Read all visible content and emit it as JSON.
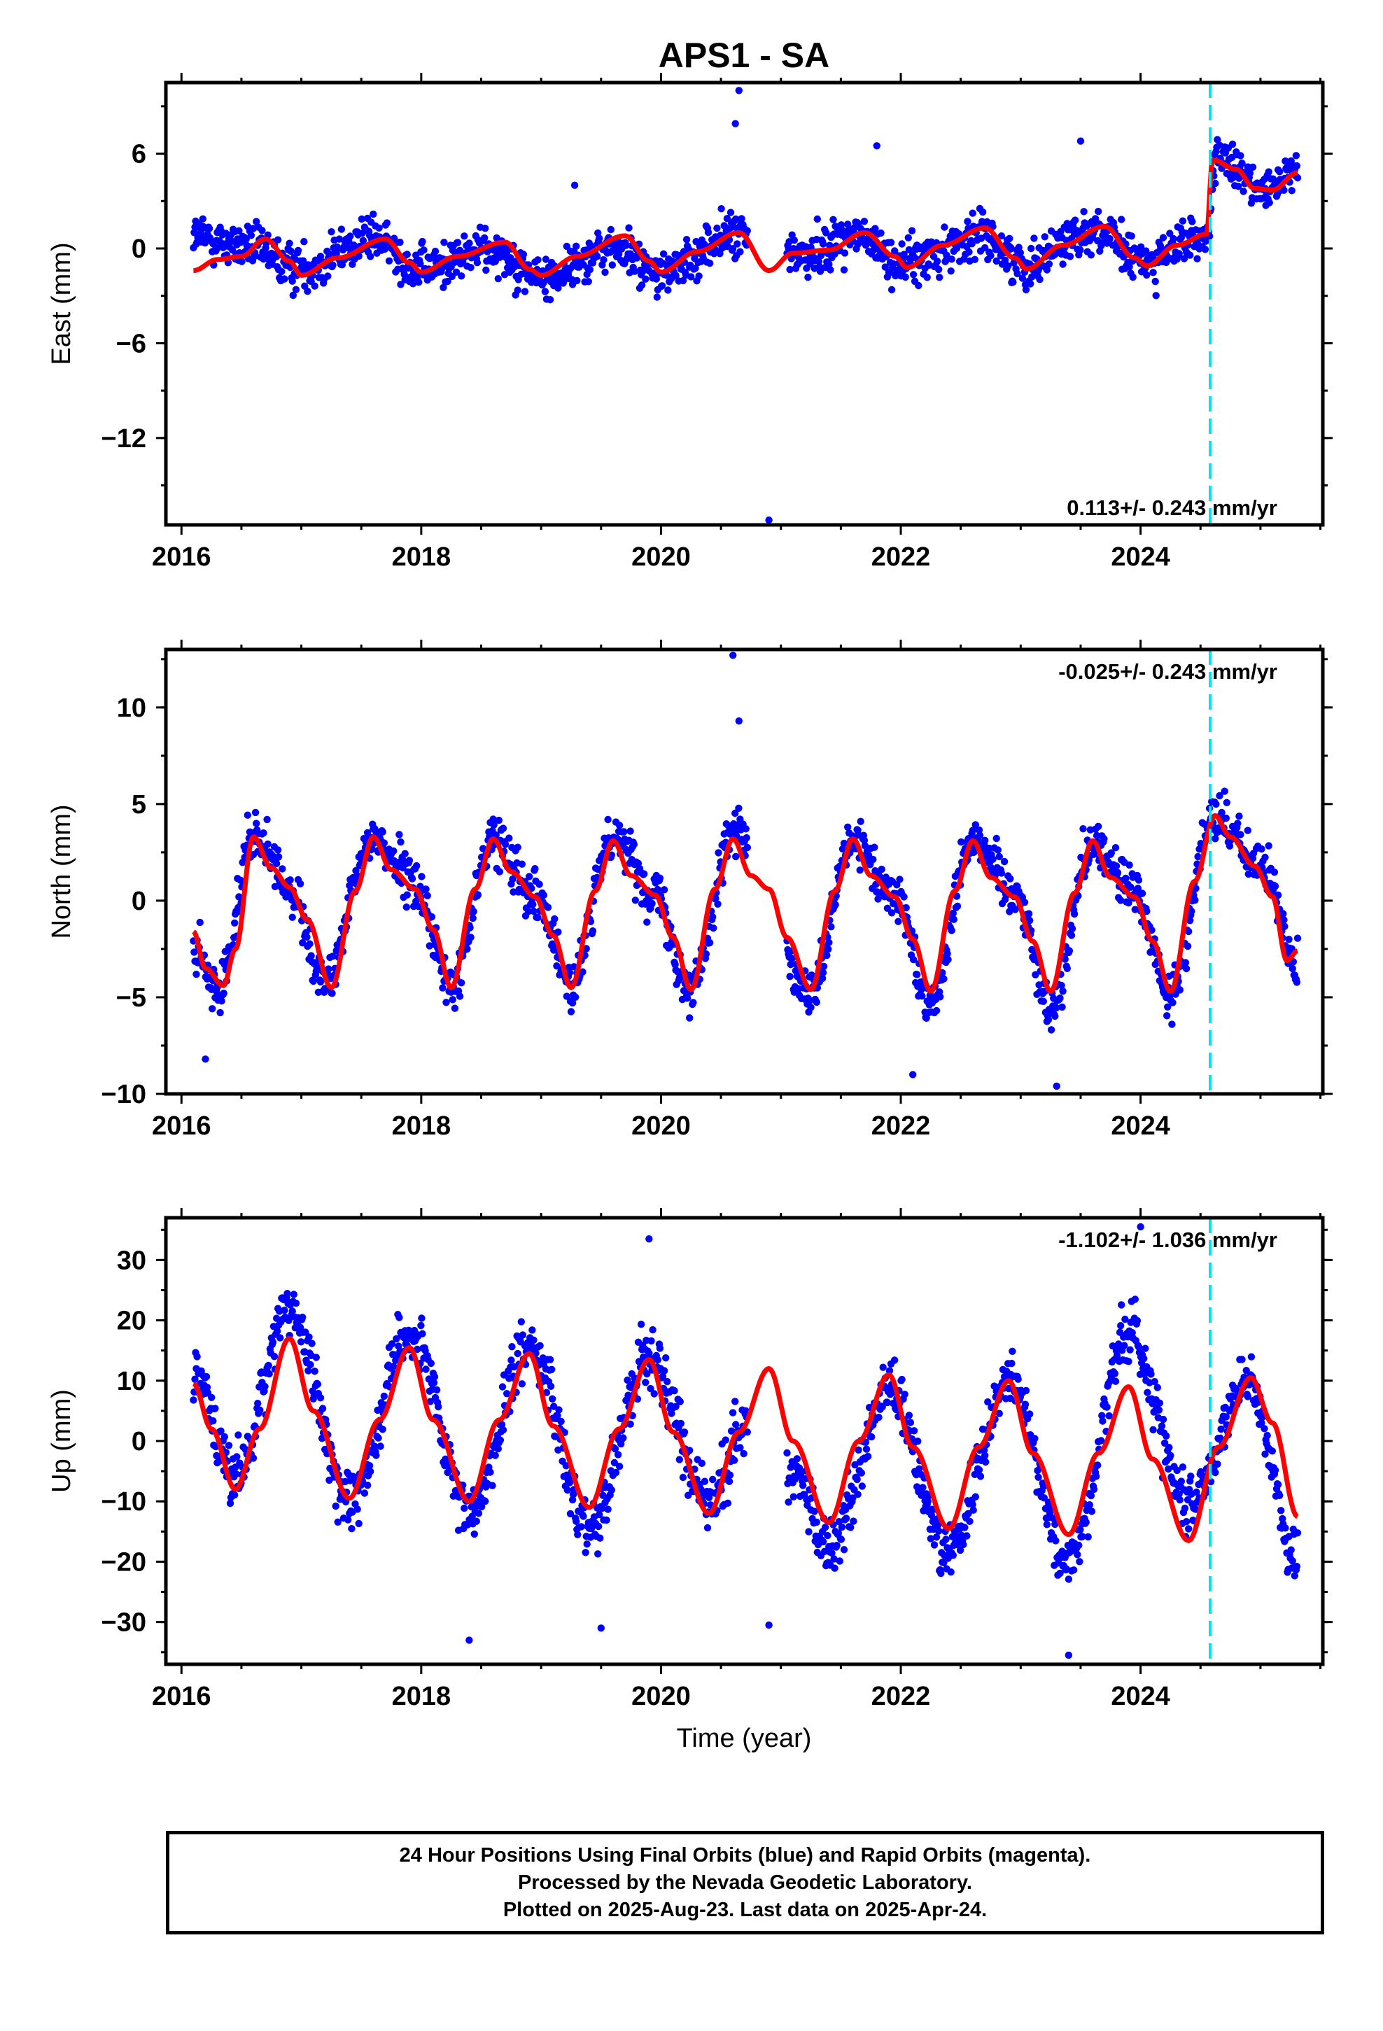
{
  "title": "APS1 - SA",
  "xlabel": "Time (year)",
  "x_ticks": [
    "2016",
    "2018",
    "2020",
    "2022",
    "2024"
  ],
  "colors": {
    "points": "#0000ff",
    "fit": "#ff0000",
    "event": "#00e5ee",
    "frame": "#000000"
  },
  "footer": {
    "line1": "24 Hour Positions Using Final Orbits (blue) and Rapid Orbits (magenta).",
    "line2": "Processed by the Nevada Geodetic Laboratory.",
    "line3": "Plotted on 2025-Aug-23. Last data on 2025-Apr-24."
  },
  "chart_data": [
    {
      "type": "scatter",
      "ylabel": "East (mm)",
      "rate": "0.113+/- 0.243 mm/yr",
      "rate_position": "bottom-right",
      "xlim": [
        2015.87,
        2025.52
      ],
      "ylim": [
        -17.5,
        10.5
      ],
      "yticks": [
        -12,
        -6,
        0,
        6
      ],
      "xticks": [
        2016,
        2018,
        2020,
        2022,
        2024
      ],
      "event_line_x": 2024.58,
      "data_range": [
        2016.1,
        2025.31
      ],
      "gap": [
        2020.72,
        2021.05
      ],
      "series": [
        {
          "kind": "points",
          "trend": [
            [
              2016.1,
              0.8
            ],
            [
              2016.5,
              0.2
            ],
            [
              2017.0,
              -1.2
            ],
            [
              2017.6,
              0.6
            ],
            [
              2018.0,
              -1.3
            ],
            [
              2018.6,
              0.0
            ],
            [
              2019.0,
              -1.9
            ],
            [
              2019.6,
              0.0
            ],
            [
              2020.0,
              -1.6
            ],
            [
              2020.6,
              0.8
            ],
            [
              2021.2,
              -0.4
            ],
            [
              2021.6,
              0.9
            ],
            [
              2022.0,
              -0.9
            ],
            [
              2022.7,
              0.8
            ],
            [
              2023.0,
              -1.0
            ],
            [
              2023.6,
              1.2
            ],
            [
              2024.0,
              -0.8
            ],
            [
              2024.55,
              0.6
            ],
            [
              2024.62,
              5.5
            ],
            [
              2025.0,
              4.0
            ],
            [
              2025.31,
              4.6
            ]
          ],
          "scatter": 1.6,
          "outliers": [
            [
              2020.65,
              10.0
            ],
            [
              2020.62,
              7.9
            ],
            [
              2020.9,
              -17.2
            ],
            [
              2019.28,
              4.0
            ],
            [
              2021.8,
              6.5
            ],
            [
              2023.5,
              6.8
            ]
          ]
        },
        {
          "kind": "fit",
          "points": [
            [
              2016.1,
              -1.4
            ],
            [
              2016.3,
              -0.7
            ],
            [
              2016.5,
              -0.5
            ],
            [
              2016.7,
              0.6
            ],
            [
              2016.9,
              -0.8
            ],
            [
              2017.0,
              -1.7
            ],
            [
              2017.3,
              -0.6
            ],
            [
              2017.7,
              0.6
            ],
            [
              2017.9,
              -0.9
            ],
            [
              2018.0,
              -1.5
            ],
            [
              2018.3,
              -0.5
            ],
            [
              2018.7,
              0.4
            ],
            [
              2018.9,
              -1.3
            ],
            [
              2019.0,
              -1.7
            ],
            [
              2019.3,
              -0.5
            ],
            [
              2019.7,
              0.8
            ],
            [
              2019.9,
              -0.8
            ],
            [
              2020.0,
              -1.5
            ],
            [
              2020.3,
              -0.2
            ],
            [
              2020.65,
              1.0
            ],
            [
              2020.9,
              -1.4
            ],
            [
              2021.1,
              -0.3
            ],
            [
              2021.4,
              -0.1
            ],
            [
              2021.7,
              1.0
            ],
            [
              2021.95,
              -0.5
            ],
            [
              2022.05,
              -1.2
            ],
            [
              2022.35,
              0.2
            ],
            [
              2022.7,
              1.3
            ],
            [
              2022.95,
              -0.6
            ],
            [
              2023.05,
              -1.3
            ],
            [
              2023.35,
              0.2
            ],
            [
              2023.7,
              1.4
            ],
            [
              2023.95,
              -0.6
            ],
            [
              2024.05,
              -1.1
            ],
            [
              2024.3,
              0.2
            ],
            [
              2024.55,
              0.9
            ],
            [
              2024.6,
              5.6
            ],
            [
              2024.8,
              5.0
            ],
            [
              2024.95,
              3.8
            ],
            [
              2025.1,
              3.7
            ],
            [
              2025.31,
              4.8
            ]
          ]
        }
      ]
    },
    {
      "type": "scatter",
      "ylabel": "North (mm)",
      "rate": "-0.025+/- 0.243 mm/yr",
      "rate_position": "top-right",
      "xlim": [
        2015.87,
        2025.52
      ],
      "ylim": [
        -10,
        13
      ],
      "yticks": [
        -10,
        -5,
        0,
        5,
        10
      ],
      "xticks": [
        2016,
        2018,
        2020,
        2022,
        2024
      ],
      "event_line_x": 2024.58,
      "data_range": [
        2016.1,
        2025.31
      ],
      "gap": [
        2020.72,
        2021.05
      ],
      "series": [
        {
          "kind": "points",
          "trend": [
            [
              2016.1,
              -2.5
            ],
            [
              2016.3,
              -4.8
            ],
            [
              2016.6,
              3.4
            ],
            [
              2016.9,
              0.6
            ],
            [
              2017.2,
              -4.2
            ],
            [
              2017.6,
              3.3
            ],
            [
              2017.95,
              0.8
            ],
            [
              2018.25,
              -4.5
            ],
            [
              2018.6,
              3.2
            ],
            [
              2018.95,
              0.5
            ],
            [
              2019.25,
              -4.4
            ],
            [
              2019.6,
              3.5
            ],
            [
              2019.95,
              0.4
            ],
            [
              2020.25,
              -4.6
            ],
            [
              2020.6,
              3.6
            ],
            [
              2021.25,
              -4.8
            ],
            [
              2021.6,
              3.0
            ],
            [
              2021.95,
              0.2
            ],
            [
              2022.25,
              -5.2
            ],
            [
              2022.6,
              3.3
            ],
            [
              2022.95,
              0.5
            ],
            [
              2023.25,
              -5.5
            ],
            [
              2023.6,
              3.0
            ],
            [
              2023.95,
              0.4
            ],
            [
              2024.25,
              -5.0
            ],
            [
              2024.6,
              4.4
            ],
            [
              2025.0,
              1.8
            ],
            [
              2025.31,
              -3.2
            ]
          ],
          "scatter": 1.4,
          "outliers": [
            [
              2020.6,
              12.7
            ],
            [
              2020.65,
              9.3
            ],
            [
              2023.3,
              -9.6
            ],
            [
              2016.2,
              -8.2
            ],
            [
              2022.1,
              -9.0
            ]
          ]
        },
        {
          "kind": "fit",
          "points": [
            [
              2016.1,
              -1.6
            ],
            [
              2016.2,
              -3.5
            ],
            [
              2016.35,
              -4.4
            ],
            [
              2016.45,
              -2.5
            ],
            [
              2016.6,
              3.3
            ],
            [
              2016.75,
              1.7
            ],
            [
              2016.9,
              0.7
            ],
            [
              2017.05,
              -1.0
            ],
            [
              2017.25,
              -4.5
            ],
            [
              2017.45,
              0.5
            ],
            [
              2017.6,
              3.3
            ],
            [
              2017.75,
              1.6
            ],
            [
              2017.95,
              0.6
            ],
            [
              2018.1,
              -1.5
            ],
            [
              2018.25,
              -4.5
            ],
            [
              2018.45,
              0.6
            ],
            [
              2018.6,
              3.2
            ],
            [
              2018.75,
              1.5
            ],
            [
              2018.95,
              0.2
            ],
            [
              2019.1,
              -1.8
            ],
            [
              2019.25,
              -4.5
            ],
            [
              2019.45,
              0.5
            ],
            [
              2019.6,
              3.1
            ],
            [
              2019.75,
              1.3
            ],
            [
              2019.95,
              0.3
            ],
            [
              2020.1,
              -1.9
            ],
            [
              2020.25,
              -4.6
            ],
            [
              2020.45,
              0.6
            ],
            [
              2020.6,
              3.2
            ],
            [
              2020.75,
              1.3
            ],
            [
              2020.9,
              0.6
            ],
            [
              2021.05,
              -1.9
            ],
            [
              2021.25,
              -4.6
            ],
            [
              2021.45,
              0.5
            ],
            [
              2021.6,
              3.2
            ],
            [
              2021.75,
              1.3
            ],
            [
              2021.95,
              0.2
            ],
            [
              2022.1,
              -2.0
            ],
            [
              2022.25,
              -4.7
            ],
            [
              2022.45,
              0.5
            ],
            [
              2022.6,
              3.1
            ],
            [
              2022.75,
              1.2
            ],
            [
              2022.95,
              0.2
            ],
            [
              2023.1,
              -2.1
            ],
            [
              2023.25,
              -4.7
            ],
            [
              2023.45,
              0.4
            ],
            [
              2023.6,
              3.1
            ],
            [
              2023.75,
              1.2
            ],
            [
              2023.95,
              0.2
            ],
            [
              2024.1,
              -2.1
            ],
            [
              2024.25,
              -4.7
            ],
            [
              2024.45,
              1.0
            ],
            [
              2024.62,
              4.4
            ],
            [
              2024.75,
              3.3
            ],
            [
              2024.95,
              1.8
            ],
            [
              2025.1,
              0.2
            ],
            [
              2025.22,
              -3.1
            ],
            [
              2025.31,
              -2.6
            ]
          ]
        }
      ]
    },
    {
      "type": "scatter",
      "ylabel": "Up (mm)",
      "rate": "-1.102+/- 1.036 mm/yr",
      "rate_position": "top-right",
      "xlim": [
        2015.87,
        2025.52
      ],
      "ylim": [
        -37,
        37
      ],
      "yticks": [
        -30,
        -20,
        -10,
        0,
        10,
        20,
        30
      ],
      "xticks": [
        2016,
        2018,
        2020,
        2022,
        2024
      ],
      "event_line_x": 2024.58,
      "data_range": [
        2016.1,
        2025.31
      ],
      "gap": [
        2020.72,
        2021.05
      ],
      "series": [
        {
          "kind": "points",
          "trend": [
            [
              2016.1,
              12
            ],
            [
              2016.45,
              -6
            ],
            [
              2016.9,
              22
            ],
            [
              2017.4,
              -10
            ],
            [
              2017.9,
              18
            ],
            [
              2018.4,
              -12
            ],
            [
              2018.9,
              16
            ],
            [
              2019.4,
              -14
            ],
            [
              2019.9,
              14
            ],
            [
              2020.4,
              -10
            ],
            [
              2020.7,
              2
            ],
            [
              2021.1,
              -5
            ],
            [
              2021.4,
              -18
            ],
            [
              2021.9,
              8
            ],
            [
              2022.4,
              -18
            ],
            [
              2022.9,
              10
            ],
            [
              2023.4,
              -20
            ],
            [
              2023.9,
              18
            ],
            [
              2024.4,
              -10
            ],
            [
              2024.9,
              10
            ],
            [
              2025.31,
              -20
            ]
          ],
          "scatter": 5.5,
          "outliers": [
            [
              2019.9,
              33.5
            ],
            [
              2018.4,
              -33
            ],
            [
              2024.0,
              35.5
            ],
            [
              2023.4,
              -35.5
            ],
            [
              2020.9,
              -30.5
            ],
            [
              2019.5,
              -31
            ]
          ]
        },
        {
          "kind": "fit",
          "points": [
            [
              2016.1,
              9.5
            ],
            [
              2016.25,
              2.0
            ],
            [
              2016.45,
              -8.0
            ],
            [
              2016.65,
              2.0
            ],
            [
              2016.9,
              17.0
            ],
            [
              2017.1,
              5.0
            ],
            [
              2017.4,
              -9.5
            ],
            [
              2017.65,
              3.5
            ],
            [
              2017.9,
              15.5
            ],
            [
              2018.1,
              3.5
            ],
            [
              2018.4,
              -10.0
            ],
            [
              2018.65,
              3.5
            ],
            [
              2018.9,
              14.5
            ],
            [
              2019.1,
              2.5
            ],
            [
              2019.4,
              -11.0
            ],
            [
              2019.65,
              2.0
            ],
            [
              2019.9,
              13.5
            ],
            [
              2020.1,
              1.5
            ],
            [
              2020.4,
              -12.0
            ],
            [
              2020.65,
              1.5
            ],
            [
              2020.9,
              12.0
            ],
            [
              2021.1,
              0.0
            ],
            [
              2021.4,
              -13.5
            ],
            [
              2021.65,
              0.0
            ],
            [
              2021.9,
              11.0
            ],
            [
              2022.1,
              -1.0
            ],
            [
              2022.4,
              -14.5
            ],
            [
              2022.65,
              -1.0
            ],
            [
              2022.9,
              10.0
            ],
            [
              2023.1,
              -2.0
            ],
            [
              2023.4,
              -15.5
            ],
            [
              2023.65,
              -2.0
            ],
            [
              2023.9,
              9.0
            ],
            [
              2024.1,
              -3.0
            ],
            [
              2024.4,
              -16.5
            ],
            [
              2024.65,
              -1.0
            ],
            [
              2024.92,
              10.5
            ],
            [
              2025.1,
              3.0
            ],
            [
              2025.31,
              -12.5
            ]
          ]
        }
      ]
    }
  ]
}
